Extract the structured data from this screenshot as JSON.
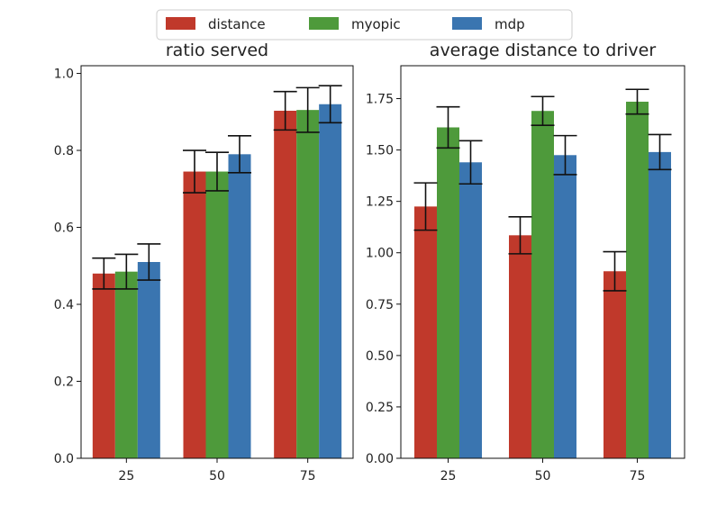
{
  "legend": {
    "placement": "top-center",
    "entries": [
      {
        "label": "distance",
        "color": "#C0392B"
      },
      {
        "label": "myopic",
        "color": "#4E9A3B"
      },
      {
        "label": "mdp",
        "color": "#3A75B0"
      }
    ]
  },
  "chart_data": [
    {
      "type": "bar",
      "title": "ratio served",
      "xlabel": "",
      "ylabel": "",
      "categories": [
        "25",
        "50",
        "75"
      ],
      "ylim": [
        0,
        1.02
      ],
      "yticks": [
        "0.0",
        "0.2",
        "0.4",
        "0.6",
        "0.8",
        "1.0"
      ],
      "grid": false,
      "series": [
        {
          "name": "distance",
          "color": "#C0392B",
          "values": [
            0.48,
            0.745,
            0.903
          ],
          "errors": [
            0.04,
            0.055,
            0.05
          ]
        },
        {
          "name": "myopic",
          "color": "#4E9A3B",
          "values": [
            0.485,
            0.745,
            0.905
          ],
          "errors": [
            0.045,
            0.05,
            0.058
          ]
        },
        {
          "name": "mdp",
          "color": "#3A75B0",
          "values": [
            0.51,
            0.79,
            0.92
          ],
          "errors": [
            0.047,
            0.048,
            0.048
          ]
        }
      ]
    },
    {
      "type": "bar",
      "title": "average distance to driver",
      "xlabel": "",
      "ylabel": "",
      "categories": [
        "25",
        "50",
        "75"
      ],
      "ylim": [
        0,
        1.91
      ],
      "yticks": [
        "0.00",
        "0.25",
        "0.50",
        "0.75",
        "1.00",
        "1.25",
        "1.50",
        "1.75"
      ],
      "grid": false,
      "series": [
        {
          "name": "distance",
          "color": "#C0392B",
          "values": [
            1.225,
            1.085,
            0.91
          ],
          "errors": [
            0.115,
            0.09,
            0.095
          ]
        },
        {
          "name": "myopic",
          "color": "#4E9A3B",
          "values": [
            1.61,
            1.69,
            1.735
          ],
          "errors": [
            0.1,
            0.07,
            0.06
          ]
        },
        {
          "name": "mdp",
          "color": "#3A75B0",
          "values": [
            1.44,
            1.475,
            1.49
          ],
          "errors": [
            0.105,
            0.095,
            0.085
          ]
        }
      ]
    }
  ]
}
